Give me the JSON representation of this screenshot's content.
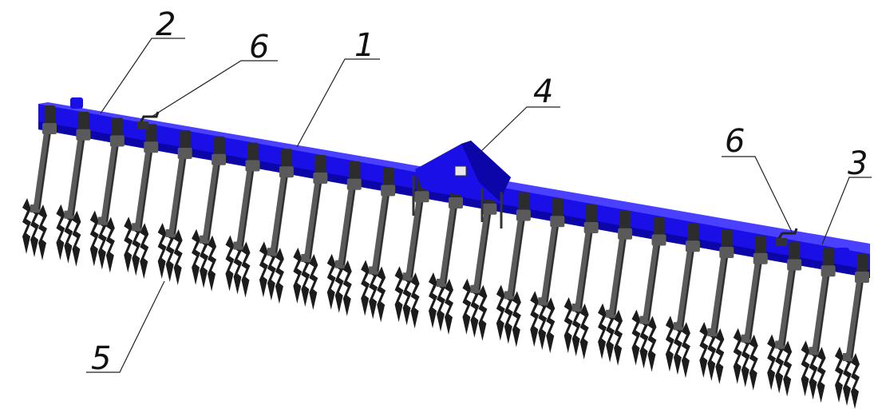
{
  "colors": {
    "frame": "#1a0fe6",
    "frame_dark": "#0c06a8",
    "frame_light": "#4a40ff",
    "arm": "#5a5a5a",
    "arm_dark": "#2c2c2c",
    "tine": "#1c1c1c"
  },
  "callouts": [
    {
      "id": "frame",
      "label": "1"
    },
    {
      "id": "left-end",
      "label": "2"
    },
    {
      "id": "right-end",
      "label": "3"
    },
    {
      "id": "hitch",
      "label": "4"
    },
    {
      "id": "tine-section",
      "label": "5"
    },
    {
      "id": "lever-left",
      "label": "6"
    },
    {
      "id": "lever-right",
      "label": "6"
    }
  ],
  "arm_count": 25
}
